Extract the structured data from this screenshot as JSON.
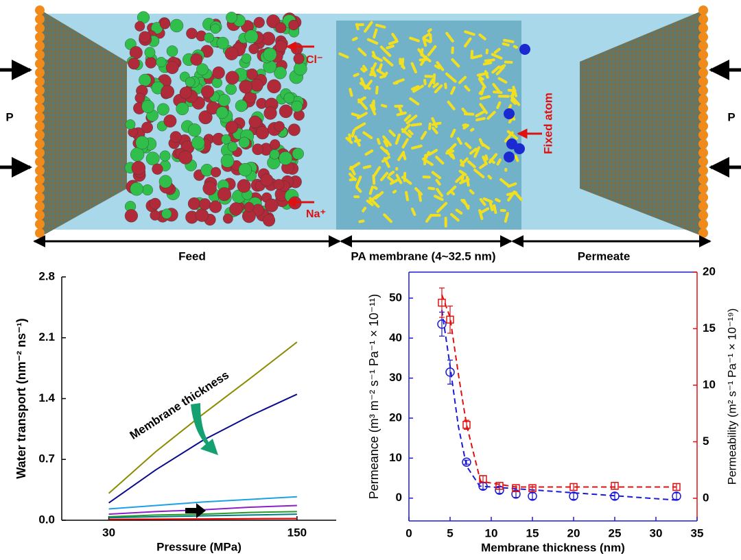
{
  "diagram": {
    "labels": {
      "chloride": "Cl⁻",
      "sodium": "Na⁺",
      "fixed_atom": "Fixed atom",
      "pressure_left": "P",
      "pressure_right": "P"
    },
    "regions": [
      "Feed",
      "PA membrane (4~32.5 nm)",
      "Permeate"
    ]
  },
  "chart_data": [
    {
      "type": "line",
      "xlabel": "Pressure (MPa)",
      "ylabel": "Water transport (nm⁻² ns⁻¹)",
      "annotation": "Membrane thickness",
      "x": [
        30,
        60,
        90,
        120,
        150
      ],
      "xlim": [
        0,
        175
      ],
      "xticks": [
        30,
        150
      ],
      "ylim": [
        0,
        2.8
      ],
      "yticks": [
        {
          "value": 0,
          "label": "0.0"
        },
        {
          "value": 0.7,
          "label": "0.7"
        },
        {
          "value": 1.4,
          "label": "1.4"
        },
        {
          "value": 2.1,
          "label": "2.1"
        },
        {
          "value": 2.8,
          "label": "2.8"
        }
      ],
      "series": [
        {
          "color": "#8b8b00",
          "values": [
            0.31,
            0.79,
            1.22,
            1.63,
            2.05
          ]
        },
        {
          "color": "#0a0a8c",
          "values": [
            0.2,
            0.58,
            0.92,
            1.2,
            1.45
          ]
        },
        {
          "color": "#1aa0e6",
          "values": [
            0.13,
            0.17,
            0.21,
            0.24,
            0.27
          ]
        },
        {
          "color": "#8a1fc8",
          "values": [
            0.07,
            0.1,
            0.12,
            0.15,
            0.17
          ]
        },
        {
          "color": "#2a9a2a",
          "values": [
            0.04,
            0.06,
            0.07,
            0.09,
            0.1
          ]
        },
        {
          "color": "#008080",
          "values": [
            0.03,
            0.04,
            0.05,
            0.06,
            0.07
          ]
        },
        {
          "color": "#e00000",
          "values": [
            0.01,
            0.013,
            0.015,
            0.018,
            0.02
          ]
        }
      ]
    },
    {
      "type": "line",
      "xlabel": "Membrane thickness (nm)",
      "ylabel": "Permeance  (m³ m⁻² s⁻¹ Pa⁻¹ × 10⁻¹¹)",
      "y2label": "Permeability (m² s⁻¹ Pa⁻¹ × 10⁻¹⁹)",
      "xlim": [
        0,
        35
      ],
      "xticks": [
        0,
        5,
        10,
        15,
        20,
        25,
        30,
        35
      ],
      "ylim": [
        -5.7,
        56.5
      ],
      "yticks": [
        0,
        10,
        20,
        30,
        40,
        50
      ],
      "y2lim": [
        -2,
        20
      ],
      "y2ticks": [
        0,
        5,
        10,
        15,
        20
      ],
      "series": [
        {
          "color": "#1a1ad8",
          "dashed": true,
          "x": [
            4,
            5,
            6,
            7,
            8.6,
            32.5
          ],
          "values": [
            47,
            33,
            18,
            8,
            3,
            -0.5
          ]
        },
        {
          "color": "#e01010",
          "dashed": true,
          "axis": "y2",
          "x": [
            4,
            5,
            6,
            7,
            8.7,
            13,
            32.5
          ],
          "values": [
            18,
            16,
            11,
            6.5,
            1.5,
            1,
            1
          ]
        },
        {
          "color": "#1a1ad8",
          "marker": "circle",
          "x": [
            4,
            5,
            7,
            9,
            11,
            13,
            15,
            20,
            25,
            32.5
          ],
          "values": [
            43.5,
            31.5,
            9,
            3,
            2,
            1,
            0.5,
            0.5,
            0.5,
            0.5
          ],
          "errors": [
            3,
            3,
            0.5,
            0.8,
            0.8,
            0.8,
            0.8,
            0.8,
            0.8,
            0.8
          ]
        },
        {
          "color": "#e01010",
          "marker": "square",
          "axis": "y2",
          "x": [
            4,
            5,
            7,
            9,
            11,
            13,
            15,
            20,
            25,
            32.5
          ],
          "values": [
            17.3,
            15.8,
            6.5,
            1.7,
            1.1,
            0.9,
            0.9,
            1.0,
            1.1,
            1.0
          ],
          "errors": [
            1.3,
            1.2,
            0.4,
            0.3,
            0.3,
            0.3,
            0.3,
            0.3,
            0.3,
            0.3
          ]
        }
      ]
    }
  ]
}
